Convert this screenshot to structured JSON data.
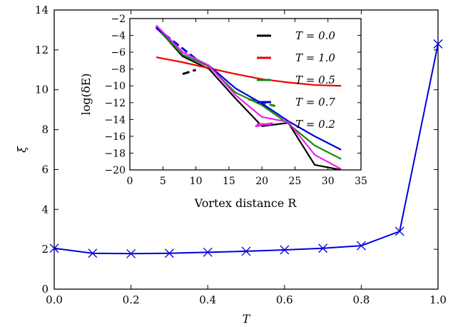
{
  "chart_data": [
    {
      "type": "line",
      "title": "",
      "xlabel": "T",
      "ylabel": "ξ",
      "xlim": [
        0.0,
        1.0
      ],
      "ylim": [
        0,
        14
      ],
      "xticks": [
        "0.0",
        "0.2",
        "0.4",
        "0.6",
        "0.8",
        "1.0"
      ],
      "yticks": [
        "0",
        "2",
        "4",
        "6",
        "8",
        "10",
        "12",
        "14"
      ],
      "grid": false,
      "series": [
        {
          "color": "#0000dd",
          "marker": "x",
          "x": [
            0.0,
            0.1,
            0.2,
            0.3,
            0.4,
            0.5,
            0.6,
            0.7,
            0.8,
            0.9,
            1.0
          ],
          "y": [
            2.05,
            1.8,
            1.78,
            1.8,
            1.85,
            1.9,
            1.97,
            2.05,
            2.18,
            2.9,
            12.3
          ]
        }
      ]
    },
    {
      "type": "line",
      "title": "",
      "xlabel": "Vortex distance R",
      "ylabel": "log(δE)",
      "xlim": [
        0,
        35
      ],
      "ylim": [
        -20,
        -2
      ],
      "xticks": [
        "0",
        "5",
        "10",
        "15",
        "20",
        "25",
        "30",
        "35"
      ],
      "yticks": [
        "−20",
        "−18",
        "−16",
        "−14",
        "−12",
        "−10",
        "−8",
        "−6",
        "−4",
        "−2"
      ],
      "grid": false,
      "legend_position": "right",
      "series": [
        {
          "name": "T = 0.0",
          "color": "#000000",
          "x": [
            4,
            8,
            12,
            16,
            20,
            24,
            28,
            32
          ],
          "y": [
            -3.0,
            -6.5,
            -8.0,
            -11.5,
            -14.8,
            -14.4,
            -19.4,
            -20.0
          ],
          "fit": {
            "x": [
              8,
              10
            ],
            "y": [
              -8.6,
              -8.1
            ]
          }
        },
        {
          "name": "T = 1.0",
          "color": "#ee0000",
          "x": [
            4,
            8,
            12,
            16,
            20,
            24,
            28,
            32
          ],
          "y": [
            -6.6,
            -7.2,
            -7.9,
            -8.6,
            -9.2,
            -9.6,
            -9.9,
            -10.0
          ]
        },
        {
          "name": "T = 0.5",
          "color": "#118811",
          "x": [
            4,
            8,
            12,
            16,
            20,
            24,
            28,
            32
          ],
          "y": [
            -3.1,
            -6.3,
            -7.7,
            -10.8,
            -12.3,
            -14.5,
            -17.1,
            -18.7
          ],
          "fit": {
            "x": [
              18,
              22
            ],
            "y": [
              -11.6,
              -12.4
            ]
          }
        },
        {
          "name": "T = 0.7",
          "color": "#0000dd",
          "x": [
            4,
            8,
            12,
            16,
            20,
            24,
            28,
            32
          ],
          "y": [
            -2.9,
            -6.0,
            -7.6,
            -10.3,
            -12.1,
            -14.2,
            -16.0,
            -17.6
          ],
          "fit": {
            "x": [
              4,
              10
            ],
            "y": [
              -3.1,
              -6.8
            ]
          }
        },
        {
          "name": "T = 0.2",
          "color": "#ee22ee",
          "x": [
            4,
            8,
            12,
            16,
            20,
            24,
            28,
            32
          ],
          "y": [
            -2.8,
            -6.0,
            -7.6,
            -11.1,
            -13.7,
            -14.3,
            -18.2,
            -19.9
          ],
          "fit": {
            "x": [
              19,
              22
            ],
            "y": [
              -14.8,
              -14.4
            ]
          }
        }
      ]
    }
  ]
}
